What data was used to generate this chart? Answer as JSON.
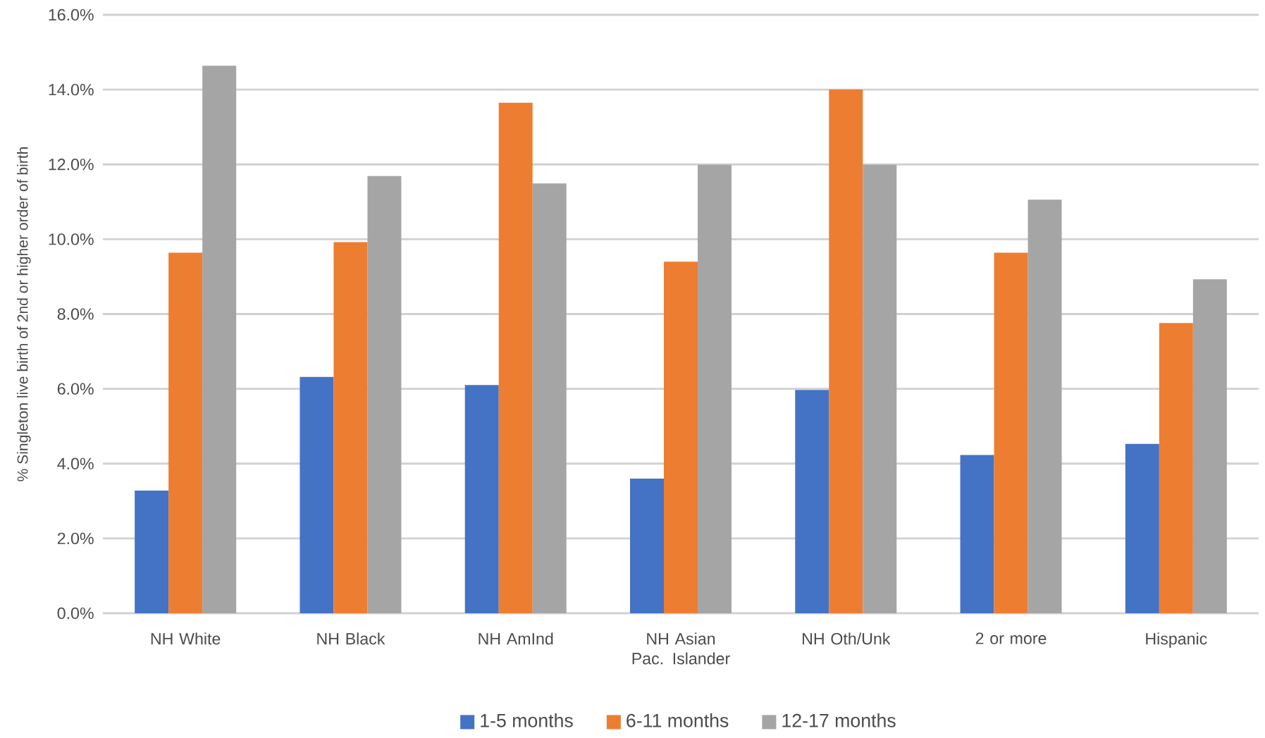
{
  "chart_data": {
    "type": "bar",
    "ylabel": "% Singleton live birth of 2nd or higher order of birth",
    "categories": [
      "NH White",
      "NH Black",
      "NH AmInd",
      "NH Asian Pac. Islander",
      "NH Oth/Unk",
      "2 or more",
      "Hispanic"
    ],
    "series": [
      {
        "name": "1-5 months",
        "color": "#4472c4",
        "values": [
          3.28,
          6.32,
          6.1,
          3.6,
          5.97,
          4.23,
          4.53
        ]
      },
      {
        "name": "6-11 months",
        "color": "#ed7d31",
        "values": [
          9.64,
          9.92,
          13.65,
          9.4,
          14.0,
          9.64,
          7.76
        ]
      },
      {
        "name": "12-17 months",
        "color": "#a5a5a5",
        "values": [
          14.64,
          11.69,
          11.49,
          11.99,
          11.99,
          11.06,
          8.93
        ]
      }
    ],
    "ylim": [
      0,
      16
    ],
    "yticks": [
      {
        "value": 0,
        "label": "0.0%"
      },
      {
        "value": 2,
        "label": "2.0%"
      },
      {
        "value": 4,
        "label": "4.0%"
      },
      {
        "value": 6,
        "label": "6.0%"
      },
      {
        "value": 8,
        "label": "8.0%"
      },
      {
        "value": 10,
        "label": "10.0%"
      },
      {
        "value": 12,
        "label": "12.0%"
      },
      {
        "value": 14,
        "label": "14.0%"
      },
      {
        "value": 16,
        "label": "16.0%"
      }
    ],
    "grid": "y",
    "legend": "bottom"
  }
}
